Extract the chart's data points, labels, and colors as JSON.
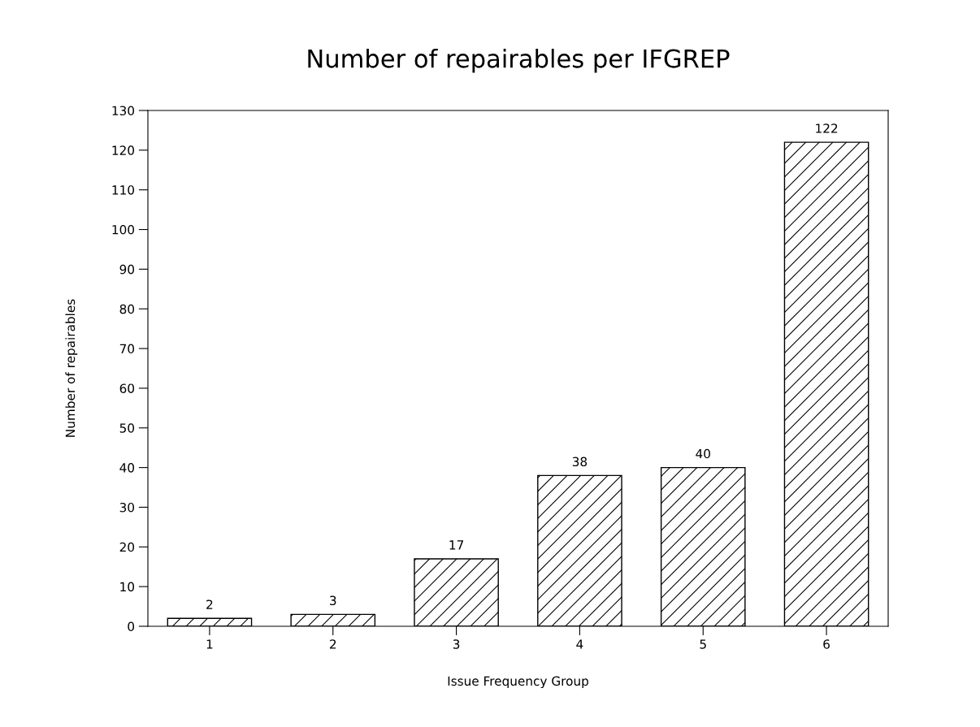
{
  "chart_data": {
    "type": "bar",
    "title": "Number of repairables per IFGREP",
    "xlabel": "Issue Frequency Group",
    "ylabel": "Number of repairables",
    "categories": [
      "1",
      "2",
      "3",
      "4",
      "5",
      "6"
    ],
    "values": [
      2,
      3,
      17,
      38,
      40,
      122
    ],
    "color": "#000000",
    "ylim": [
      0,
      130
    ],
    "yticks": [
      0,
      10,
      20,
      30,
      40,
      50,
      60,
      70,
      80,
      90,
      100,
      110,
      120,
      130
    ],
    "grid": false,
    "data_labels": true
  }
}
